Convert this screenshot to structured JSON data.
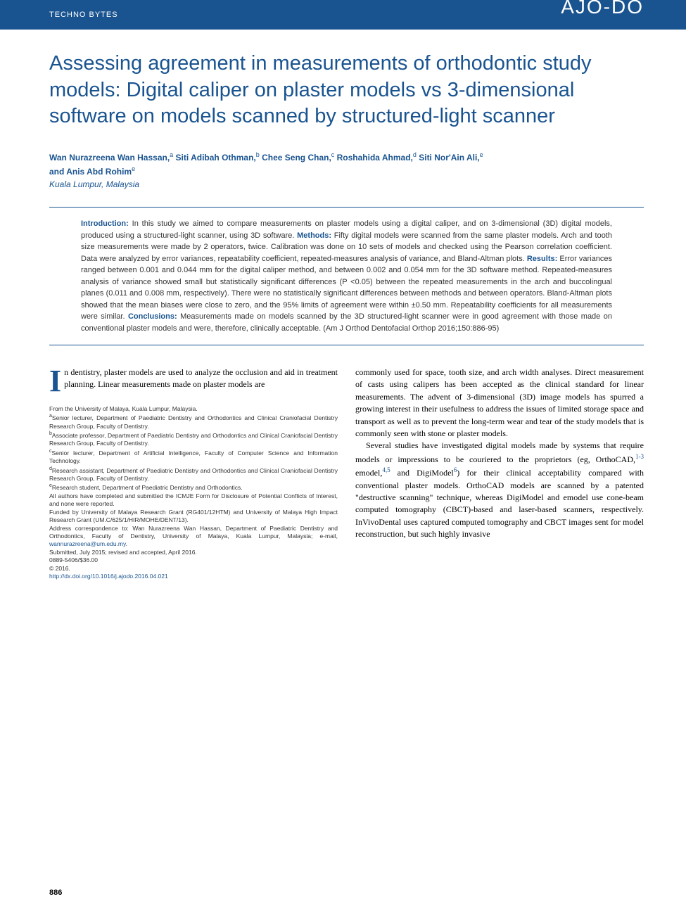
{
  "header": {
    "section_label": "TECHNO BYTES",
    "logo": "AJO-DO"
  },
  "title": "Assessing agreement in measurements of orthodontic study models: Digital caliper on plaster models vs 3-dimensional software on models scanned by structured-light scanner",
  "authors_line1": "Wan Nurazreena Wan Hassan,",
  "author_sup_a": "a",
  "authors_2": " Siti Adibah Othman,",
  "author_sup_b": "b",
  "authors_3": " Chee Seng Chan,",
  "author_sup_c": "c",
  "authors_4": " Roshahida Ahmad,",
  "author_sup_d": "d",
  "authors_5": " Siti Nor'Ain Ali,",
  "author_sup_e": "e",
  "authors_line2_prefix": "and Anis Abd Rohim",
  "author_sup_e2": "e",
  "location": "Kuala Lumpur, Malaysia",
  "abstract": {
    "intro_label": "Introduction:",
    "intro_text": " In this study we aimed to compare measurements on plaster models using a digital caliper, and on 3-dimensional (3D) digital models, produced using a structured-light scanner, using 3D software. ",
    "methods_label": "Methods:",
    "methods_text": " Fifty digital models were scanned from the same plaster models. Arch and tooth size measurements were made by 2 operators, twice. Calibration was done on 10 sets of models and checked using the Pearson correlation coefficient. Data were analyzed by error variances, repeatability coefficient, repeated-measures analysis of variance, and Bland-Altman plots. ",
    "results_label": "Results:",
    "results_text": " Error variances ranged between 0.001 and 0.044 mm for the digital caliper method, and between 0.002 and 0.054 mm for the 3D software method. Repeated-measures analysis of variance showed small but statistically significant differences (P <0.05) between the repeated measurements in the arch and buccolingual planes (0.011 and 0.008 mm, respectively). There were no statistically significant differences between methods and between operators. Bland-Altman plots showed that the mean biases were close to zero, and the 95% limits of agreement were within ±0.50 mm. Repeatability coefficients for all measurements were similar. ",
    "conclusions_label": "Conclusions:",
    "conclusions_text": " Measurements made on models scanned by the 3D structured-light scanner were in good agreement with those made on conventional plaster models and were, therefore, clinically acceptable. (Am J Orthod Dentofacial Orthop 2016;150:886-95)"
  },
  "body": {
    "col1_para1_dropcap": "I",
    "col1_para1": "n dentistry, plaster models are used to analyze the occlusion and aid in treatment planning. Linear measurements made on plaster models are",
    "col2_para1": "commonly used for space, tooth size, and arch width analyses. Direct measurement of casts using calipers has been accepted as the clinical standard for linear measurements. The advent of 3-dimensional (3D) image models has spurred a growing interest in their usefulness to address the issues of limited storage space and transport as well as to prevent the long-term wear and tear of the study models that is commonly seen with stone or plaster models.",
    "col2_para2_part1": "Several studies have investigated digital models made by systems that require models or impressions to be couriered to the proprietors (eg, OrthoCAD,",
    "col2_ref1": "1-3",
    "col2_para2_part2": " emodel,",
    "col2_ref2": "4,5",
    "col2_para2_part3": " and DigiModel",
    "col2_ref3": "6",
    "col2_para2_part4": ") for their clinical acceptability compared with conventional plaster models. OrthoCAD models are scanned by a patented \"destructive scanning\" technique, whereas DigiModel and emodel use cone-beam computed tomography (CBCT)-based and laser-based scanners, respectively. InVivoDental uses captured computed tomography and CBCT images sent for model reconstruction, but such highly invasive"
  },
  "affiliations": {
    "line0": "From the University of Malaya, Kuala Lumpur, Malaysia.",
    "line_a": "Senior lecturer, Department of Paediatric Dentistry and Orthodontics and Clinical Craniofacial Dentistry Research Group, Faculty of Dentistry.",
    "line_b": "Associate professor, Department of Paediatric Dentistry and Orthodontics and Clinical Craniofacial Dentistry Research Group, Faculty of Dentistry.",
    "line_c": "Senior lecturer, Department of Artificial Intelligence, Faculty of Computer Science and Information Technology.",
    "line_d": "Research assistant, Department of Paediatric Dentistry and Orthodontics and Clinical Craniofacial Dentistry Research Group, Faculty of Dentistry.",
    "line_e": "Research student, Department of Paediatric Dentistry and Orthodontics.",
    "disclosure": "All authors have completed and submitted the ICMJE Form for Disclosure of Potential Conflicts of Interest, and none were reported.",
    "funding": "Funded by University of Malaya Research Grant (RG401/12HTM) and University of Malaya High Impact Research Grant (UM.C/625/1/HIR/MOHE/DENT/13).",
    "correspondence": "Address correspondence to: Wan Nurazreena Wan Hassan, Department of Paediatric Dentistry and Orthodontics, Faculty of Dentistry, University of Malaya, Kuala Lumpur, Malaysia; e-mail, ",
    "email": "wannurazreena@um.edu.my",
    "email_suffix": ".",
    "submitted": "Submitted, July 2015; revised and accepted, April 2016.",
    "issn": "0889-5406/$36.00",
    "copyright": "© 2016.",
    "doi": "http://dx.doi.org/10.1016/j.ajodo.2016.04.021"
  },
  "page_number": "886",
  "colors": {
    "brand_blue": "#1a5490",
    "text_gray": "#333333",
    "white": "#ffffff"
  }
}
